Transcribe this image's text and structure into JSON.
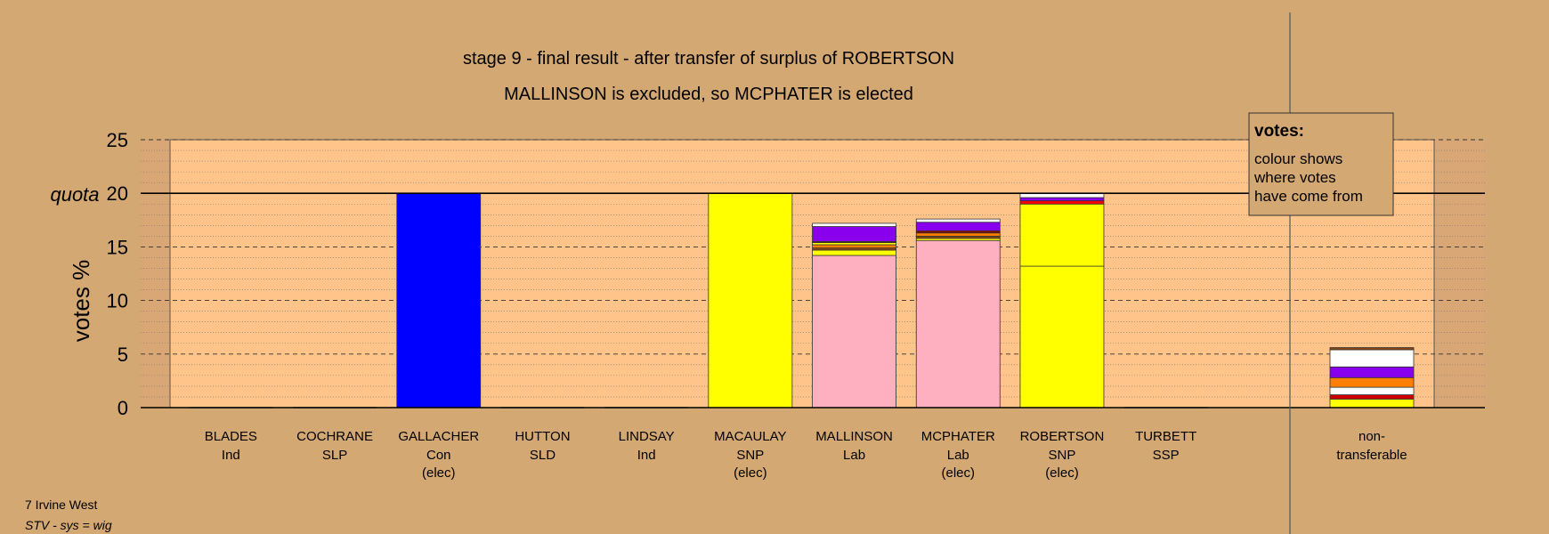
{
  "chart_data": {
    "type": "bar",
    "stacked": true,
    "title": "stage 9 - final result - after transfer of surplus of ROBERTSON",
    "subtitle": "MALLINSON is excluded, so MCPHATER is elected",
    "ylabel": "votes %",
    "quota_label": "quota",
    "quota": 20,
    "ylim": [
      0,
      25
    ],
    "yticks": [
      "0",
      "5",
      "10",
      "15",
      "20",
      "25"
    ],
    "grid": true,
    "legend": {
      "position": "top-right",
      "title": "votes:",
      "lines": [
        "colour shows",
        "where votes",
        "have come from"
      ]
    },
    "categories": [
      {
        "name": "BLADES",
        "party": "Ind",
        "status": ""
      },
      {
        "name": "COCHRANE",
        "party": "SLP",
        "status": ""
      },
      {
        "name": "GALLACHER",
        "party": "Con",
        "status": "(elec)"
      },
      {
        "name": "HUTTON",
        "party": "SLD",
        "status": ""
      },
      {
        "name": "LINDSAY",
        "party": "Ind",
        "status": ""
      },
      {
        "name": "MACAULAY",
        "party": "SNP",
        "status": "(elec)"
      },
      {
        "name": "MALLINSON",
        "party": "Lab",
        "status": ""
      },
      {
        "name": "MCPHATER",
        "party": "Lab",
        "status": "(elec)"
      },
      {
        "name": "ROBERTSON",
        "party": "SNP",
        "status": "(elec)"
      },
      {
        "name": "TURBETT",
        "party": "SSP",
        "status": ""
      }
    ],
    "nontransferable": {
      "label_line1": "non-",
      "label_line2": "transferable"
    },
    "stacks": [
      [],
      [],
      [
        {
          "color": "#0000ff",
          "value": 20.0
        }
      ],
      [],
      [],
      [
        {
          "color": "#ffff00",
          "value": 20.0
        }
      ],
      [
        {
          "color": "#ffb0c0",
          "value": 14.2
        },
        {
          "color": "#ffff00",
          "value": 0.5
        },
        {
          "color": "#8b4513",
          "value": 0.2
        },
        {
          "color": "#ff8000",
          "value": 0.3
        },
        {
          "color": "#ffff00",
          "value": 0.2
        },
        {
          "color": "#8b0000",
          "value": 0.1
        },
        {
          "color": "#8800ee",
          "value": 1.4
        },
        {
          "color": "#ffffff",
          "value": 0.3
        }
      ],
      [
        {
          "color": "#ffb0c0",
          "value": 15.6
        },
        {
          "color": "#ffff00",
          "value": 0.2
        },
        {
          "color": "#8b4513",
          "value": 0.2
        },
        {
          "color": "#ff8000",
          "value": 0.3
        },
        {
          "color": "#8b0000",
          "value": 0.2
        },
        {
          "color": "#8800ee",
          "value": 0.8
        },
        {
          "color": "#ffffff",
          "value": 0.3
        }
      ],
      [
        {
          "color": "#ffff00",
          "value": 13.2
        },
        {
          "color": "#ffff00",
          "value": 5.8
        },
        {
          "color": "#ff0000",
          "value": 0.3
        },
        {
          "color": "#8800ee",
          "value": 0.3
        },
        {
          "color": "#ffffff",
          "value": 0.4
        }
      ],
      []
    ],
    "nontransferable_stack": [
      {
        "color": "#ffff00",
        "value": 0.8
      },
      {
        "color": "#cc0000",
        "value": 0.4
      },
      {
        "color": "#ffffff",
        "value": 0.7
      },
      {
        "color": "#ff8000",
        "value": 0.9
      },
      {
        "color": "#8800ee",
        "value": 1.0
      },
      {
        "color": "#ffffff",
        "value": 1.6
      },
      {
        "color": "#8b4513",
        "value": 0.2
      }
    ]
  },
  "footer": {
    "ward": "7 Irvine West",
    "system": "STV - sys = wig"
  },
  "colors": {
    "background": "#d4a873",
    "plot_area": "#ffc48a",
    "plot_area_side": "#d9a775"
  }
}
